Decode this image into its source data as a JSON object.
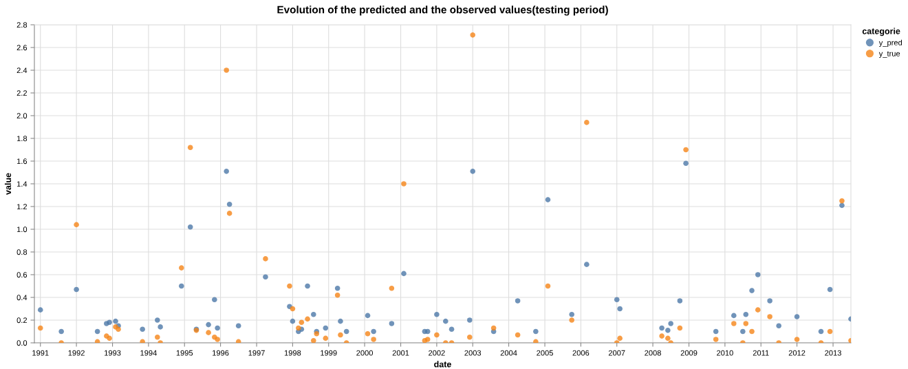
{
  "chart_data": {
    "type": "scatter",
    "title": "Evolution of the predicted and the observed values(testing period)",
    "xlabel": "date",
    "ylabel": "value",
    "legend_title": "categorie",
    "legend": "top right",
    "grid": true,
    "marker": "circle",
    "xlim": [
      "1990-11-01",
      "2013-07-01"
    ],
    "xticks": [
      "1991",
      "1992",
      "1993",
      "1994",
      "1995",
      "1996",
      "1997",
      "1998",
      "1999",
      "2000",
      "2001",
      "2002",
      "2003",
      "2004",
      "2005",
      "2006",
      "2007",
      "2008",
      "2009",
      "2010",
      "2011",
      "2012",
      "2013"
    ],
    "ylim": [
      0,
      2.8
    ],
    "yticks": [
      {
        "value": 0,
        "label": "0.0"
      },
      0.2,
      0.4,
      0.6,
      0.8,
      {
        "value": 1,
        "label": "1.0"
      },
      1.2,
      1.4,
      1.6,
      1.8,
      {
        "value": 2,
        "label": "2.0"
      },
      2.2,
      2.4,
      2.6,
      2.8
    ],
    "series": [
      {
        "name": "y_pred",
        "color": "#4c78a8",
        "x": [
          "1991-01",
          "1991-08",
          "1992-01",
          "1992-08",
          "1992-11",
          "1992-12",
          "1993-02",
          "1993-03",
          "1993-11",
          "1994-04",
          "1994-05",
          "1994-12",
          "1995-03",
          "1995-05",
          "1995-09",
          "1995-11",
          "1995-12",
          "1996-03",
          "1996-04",
          "1996-07",
          "1997-04",
          "1997-12",
          "1998-01",
          "1998-03",
          "1998-04",
          "1998-06",
          "1998-08",
          "1998-09",
          "1998-12",
          "1999-04",
          "1999-05",
          "1999-07",
          "2000-02",
          "2000-04",
          "2000-10",
          "2001-02",
          "2001-09",
          "2001-10",
          "2002-01",
          "2002-04",
          "2002-06",
          "2002-12",
          "2003-01",
          "2003-08",
          "2004-04",
          "2004-10",
          "2005-02",
          "2005-10",
          "2006-03",
          "2007-01",
          "2007-02",
          "2008-04",
          "2008-06",
          "2008-07",
          "2008-10",
          "2008-12",
          "2009-10",
          "2010-04",
          "2010-07",
          "2010-08",
          "2010-10",
          "2010-12",
          "2011-04",
          "2011-07",
          "2012-01",
          "2012-09",
          "2012-12",
          "2013-04",
          "2013-07"
        ],
        "values": [
          0.29,
          0.1,
          0.47,
          0.1,
          0.17,
          0.18,
          0.19,
          0.15,
          0.12,
          0.2,
          0.14,
          0.5,
          1.02,
          0.12,
          0.16,
          0.38,
          0.13,
          1.51,
          1.22,
          0.15,
          0.58,
          0.32,
          0.19,
          0.1,
          0.12,
          0.5,
          0.25,
          0.1,
          0.13,
          0.48,
          0.19,
          0.1,
          0.24,
          0.1,
          0.17,
          0.61,
          0.1,
          0.1,
          0.25,
          0.19,
          0.12,
          0.2,
          1.51,
          0.1,
          0.37,
          0.1,
          1.26,
          0.25,
          0.69,
          0.38,
          0.3,
          0.13,
          0.11,
          0.17,
          0.37,
          1.58,
          0.1,
          0.24,
          0.1,
          0.25,
          0.46,
          0.6,
          0.37,
          0.15,
          0.23,
          0.1,
          0.47,
          1.21,
          0.21
        ]
      },
      {
        "name": "y_true",
        "color": "#f58518",
        "x": [
          "1991-01",
          "1991-08",
          "1992-01",
          "1992-08",
          "1992-11",
          "1992-12",
          "1993-02",
          "1993-03",
          "1993-11",
          "1994-04",
          "1994-05",
          "1994-12",
          "1995-03",
          "1995-05",
          "1995-09",
          "1995-11",
          "1995-12",
          "1996-03",
          "1996-04",
          "1996-07",
          "1997-04",
          "1997-12",
          "1998-01",
          "1998-03",
          "1998-04",
          "1998-06",
          "1998-08",
          "1998-09",
          "1998-12",
          "1999-04",
          "1999-05",
          "1999-07",
          "2000-02",
          "2000-04",
          "2000-10",
          "2001-02",
          "2001-09",
          "2001-10",
          "2002-01",
          "2002-04",
          "2002-06",
          "2002-12",
          "2003-01",
          "2003-08",
          "2004-04",
          "2004-10",
          "2005-02",
          "2005-10",
          "2006-03",
          "2007-01",
          "2007-02",
          "2008-04",
          "2008-06",
          "2008-07",
          "2008-10",
          "2008-12",
          "2009-10",
          "2010-04",
          "2010-07",
          "2010-08",
          "2010-10",
          "2010-12",
          "2011-04",
          "2011-07",
          "2012-01",
          "2012-09",
          "2012-12",
          "2013-04",
          "2013-07"
        ],
        "values": [
          0.13,
          0.0,
          1.04,
          0.01,
          0.06,
          0.04,
          0.14,
          0.12,
          0.01,
          0.05,
          0.0,
          0.66,
          1.72,
          0.11,
          0.09,
          0.05,
          0.03,
          2.4,
          1.14,
          0.01,
          0.74,
          0.5,
          0.3,
          0.13,
          0.18,
          0.21,
          0.02,
          0.08,
          0.04,
          0.42,
          0.07,
          0.0,
          0.08,
          0.03,
          0.48,
          1.4,
          0.02,
          0.03,
          0.07,
          0.0,
          0.0,
          0.05,
          2.71,
          0.13,
          0.07,
          0.01,
          0.5,
          0.2,
          1.94,
          0.0,
          0.04,
          0.06,
          0.04,
          0.0,
          0.13,
          1.7,
          0.03,
          0.17,
          0.0,
          0.17,
          0.1,
          0.29,
          0.23,
          0.0,
          0.03,
          0.0,
          0.1,
          1.25,
          0.02
        ]
      }
    ]
  }
}
